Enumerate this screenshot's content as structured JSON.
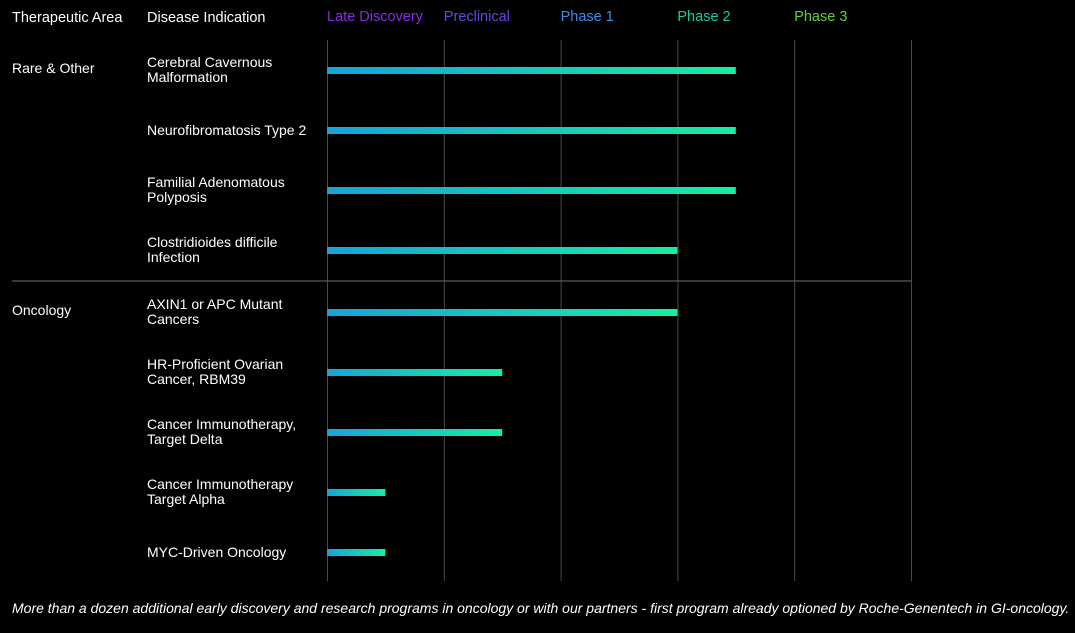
{
  "chart_data": {
    "type": "pipeline",
    "headers": {
      "area": "Therapeutic Area",
      "indication": "Disease Indication"
    },
    "stages": [
      {
        "name": "Late Discovery",
        "color": "#8a2be2"
      },
      {
        "name": "Preclinical",
        "color": "#6a45e6"
      },
      {
        "name": "Phase 1",
        "color": "#3a8fe6"
      },
      {
        "name": "Phase 2",
        "color": "#1ec9a6"
      },
      {
        "name": "Phase 3",
        "color": "#5fd13a"
      }
    ],
    "xlim": [
      0,
      5
    ],
    "bar_colors": [
      "#16a4d8",
      "#12f0a4"
    ],
    "groups": [
      {
        "name": "Rare & Other",
        "categories": [
          "Cerebral Cavernous Malformation",
          "Neurofibromatosis Type 2",
          "Familial Adenomatous Polyposis",
          "Clostridioides difficile Infection"
        ],
        "values": [
          3.5,
          3.5,
          3.5,
          3.0
        ]
      },
      {
        "name": "Oncology",
        "categories": [
          "AXIN1 or APC Mutant Cancers",
          "HR-Proficient Ovarian Cancer, RBM39",
          "Cancer Immunotherapy, Target Delta",
          "Cancer Immunotherapy Target Alpha",
          "MYC-Driven Oncology"
        ],
        "values": [
          3.0,
          1.5,
          1.5,
          0.5,
          0.5
        ]
      }
    ],
    "footnote": "More than a dozen additional early discovery and research programs in oncology or with our partners - first program already optioned by Roche-Genentech in GI-oncology."
  }
}
